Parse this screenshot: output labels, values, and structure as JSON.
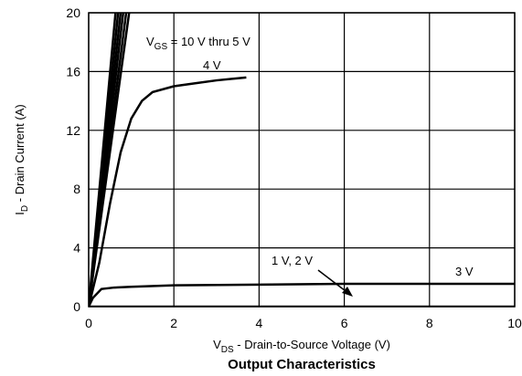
{
  "chart_data": {
    "type": "line",
    "title": "Output Characteristics",
    "xlabel": [
      "V",
      "DS",
      " - Drain-to-Source Voltage (V)"
    ],
    "ylabel": [
      "I",
      "D",
      " - Drain Current (A)"
    ],
    "xlim": [
      0,
      10
    ],
    "xticks": [
      0,
      2,
      4,
      6,
      8,
      10
    ],
    "ylim": [
      0,
      20
    ],
    "yticks": [
      0,
      4,
      8,
      12,
      16,
      20
    ],
    "grid": true,
    "series": [
      {
        "color": "#000000",
        "x": [
          0,
          0.95
        ],
        "values": [
          0,
          20
        ]
      },
      {
        "color": "#000000",
        "x": [
          0,
          0.88
        ],
        "values": [
          0,
          20
        ]
      },
      {
        "color": "#000000",
        "x": [
          0,
          0.81
        ],
        "values": [
          0,
          20
        ]
      },
      {
        "color": "#000000",
        "x": [
          0,
          0.75
        ],
        "values": [
          0,
          20
        ]
      },
      {
        "color": "#000000",
        "x": [
          0,
          0.69
        ],
        "values": [
          0,
          20
        ]
      },
      {
        "color": "#000000",
        "x": [
          0,
          0.63
        ],
        "values": [
          0,
          20
        ]
      },
      {
        "color": "#000000",
        "x": [
          0,
          0.25,
          0.5,
          0.75,
          1,
          1.25,
          1.5,
          2,
          2.5,
          3,
          3.7
        ],
        "values": [
          0,
          3,
          7,
          10.5,
          12.8,
          14,
          14.6,
          15,
          15.2,
          15.4,
          15.6
        ]
      },
      {
        "color": "#000000",
        "x": [
          0,
          0.1,
          0.3,
          0.6,
          1,
          2,
          4,
          6,
          10
        ],
        "values": [
          0,
          0.6,
          1.2,
          1.3,
          1.35,
          1.45,
          1.5,
          1.55,
          1.55
        ]
      },
      {
        "color": "#000000",
        "x": [
          0,
          10
        ],
        "values": [
          0,
          0
        ]
      }
    ],
    "annotations": [
      {
        "text": [
          "V",
          "GS",
          " = 10 V thru 5 V"
        ]
      },
      {
        "text": [
          "4 V"
        ]
      },
      {
        "text": [
          "1 V, 2 V"
        ]
      },
      {
        "text": [
          "3 V"
        ]
      }
    ]
  }
}
